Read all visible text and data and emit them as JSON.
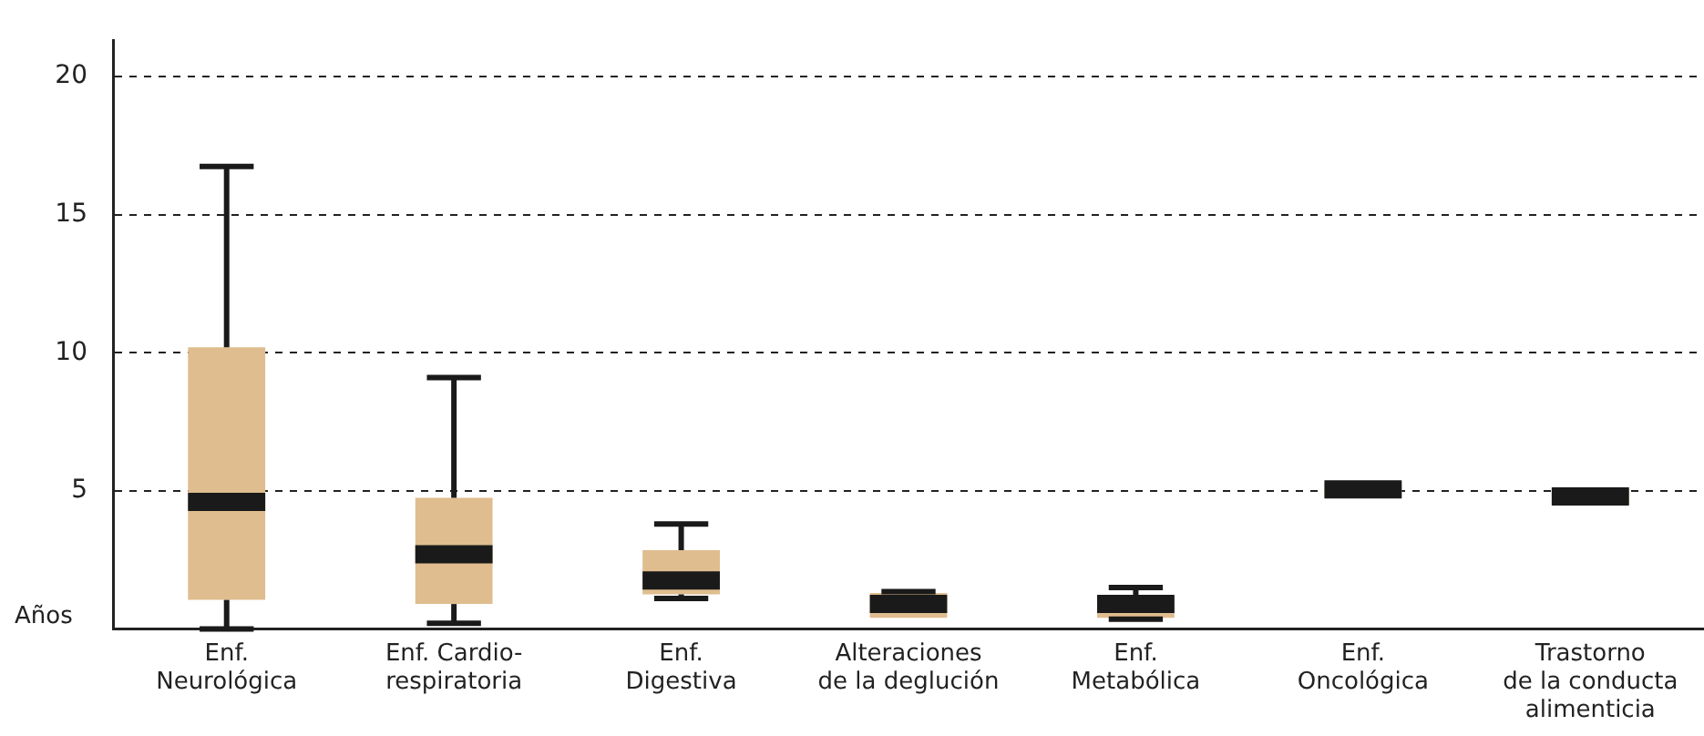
{
  "chart_data": {
    "type": "box",
    "ylabel": "Años",
    "categories": [
      "Enf.\nNeurológica",
      "Enf. Cardio-\nrespiratoria",
      "Enf.\nDigestiva",
      "Alteraciones\nde la deglución",
      "Enf.\nMetabólica",
      "Enf.\nOncológica",
      "Trastorno\nde la conducta\nalimenticia"
    ],
    "boxes": [
      {
        "low": 0,
        "q1": 1.05,
        "median": 4.6,
        "q3": 10.2,
        "high": 16.75
      },
      {
        "low": 0.2,
        "q1": 0.9,
        "median": 2.7,
        "q3": 4.75,
        "high": 9.1
      },
      {
        "low": 1.1,
        "q1": 1.25,
        "median": 1.75,
        "q3": 2.85,
        "high": 3.8
      },
      {
        "low": 0.4,
        "q1": 0.4,
        "median": 0.9,
        "q3": 1.3,
        "high": 1.35
      },
      {
        "low": 0.35,
        "q1": 0.4,
        "median": 0.9,
        "q3": 1.2,
        "high": 1.5
      },
      {
        "low": 4.75,
        "q1": 4.75,
        "median": 5.05,
        "q3": 5.3,
        "high": 5.3
      },
      {
        "low": 4.5,
        "q1": 4.5,
        "median": 4.8,
        "q3": 5.05,
        "high": 5.05
      }
    ],
    "color": "#dfbd8f",
    "ylim": [
      0,
      21.3
    ],
    "yticks": [
      5,
      10,
      15,
      20
    ],
    "grid": "y"
  }
}
